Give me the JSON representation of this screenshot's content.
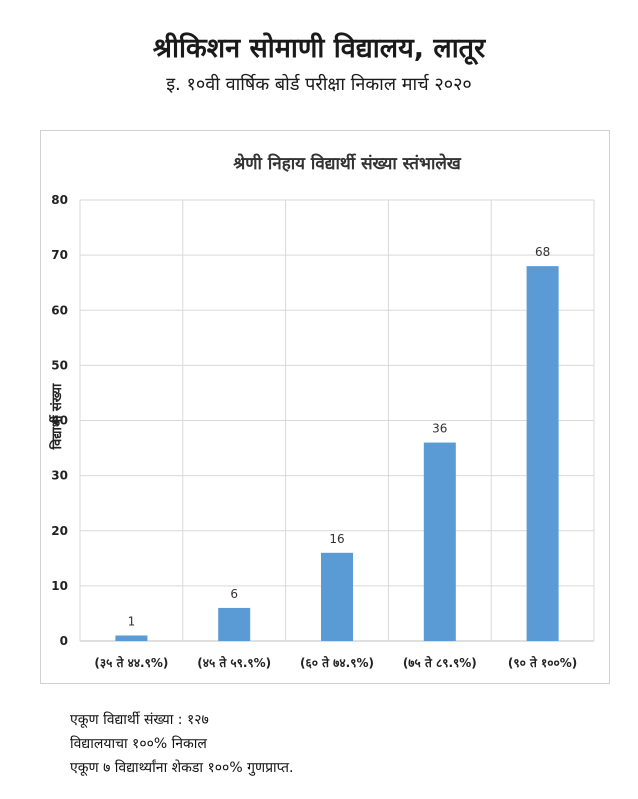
{
  "header": {
    "title": "श्रीकिशन सोमाणी विद्यालय, लातूर",
    "subtitle": "इ. १०वी वार्षिक बोर्ड परीक्षा निकाल मार्च २०२०"
  },
  "chart_data": {
    "type": "bar",
    "title": "श्रेणी निहाय विद्यार्थी संख्या स्तंभालेख",
    "xlabel": "",
    "ylabel": "विद्यार्थी संख्या",
    "categories": [
      "(३५ ते ४४.९%)",
      "(४५ ते ५९.९%)",
      "(६० ते ७४.९%)",
      "(७५ ते ८९.९%)",
      "(९० ते १००%)"
    ],
    "values": [
      1,
      6,
      16,
      36,
      68
    ],
    "ylim": [
      0,
      80
    ],
    "yticks": [
      0,
      10,
      20,
      30,
      40,
      50,
      60,
      70,
      80
    ],
    "grid": true,
    "legend": "none",
    "bar_color": "#5b9bd5"
  },
  "footer": {
    "line1": "एकूण विद्यार्थी संख्या : १२७",
    "line2": "विद्यालयाचा १००% निकाल",
    "line3": "एकूण ७ विद्यार्थ्यांना शेकडा १००% गुणप्राप्त."
  }
}
